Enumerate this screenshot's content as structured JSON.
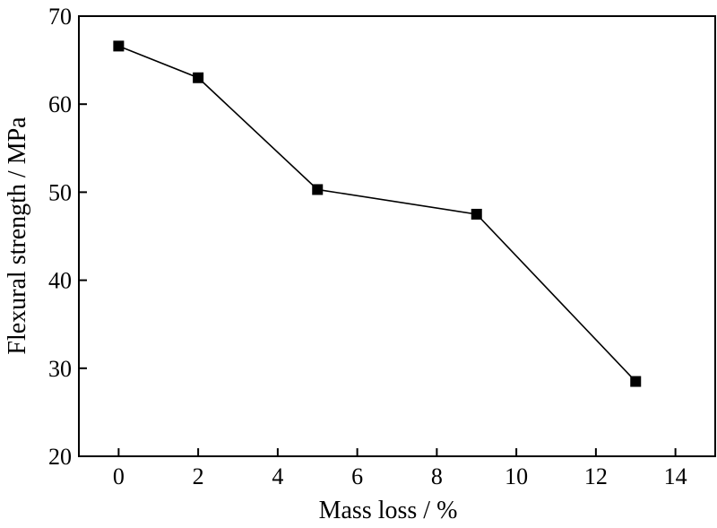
{
  "chart_data": {
    "type": "line",
    "xlabel": "Mass loss / %",
    "ylabel": "Flexural strength / MPa",
    "xlim": [
      -1,
      15
    ],
    "ylim": [
      20,
      70
    ],
    "x_ticks": [
      "0",
      "2",
      "4",
      "6",
      "8",
      "10",
      "12",
      "14"
    ],
    "y_ticks": [
      "20",
      "30",
      "40",
      "50",
      "60",
      "70"
    ],
    "grid": false,
    "marker": "square",
    "series": [
      {
        "x": [
          0,
          2,
          5,
          9,
          13
        ],
        "y": [
          66.6,
          63.0,
          50.3,
          47.5,
          28.5
        ]
      }
    ],
    "colors": {
      "line": "#000000",
      "marker": "#000000",
      "axis": "#000000"
    }
  }
}
